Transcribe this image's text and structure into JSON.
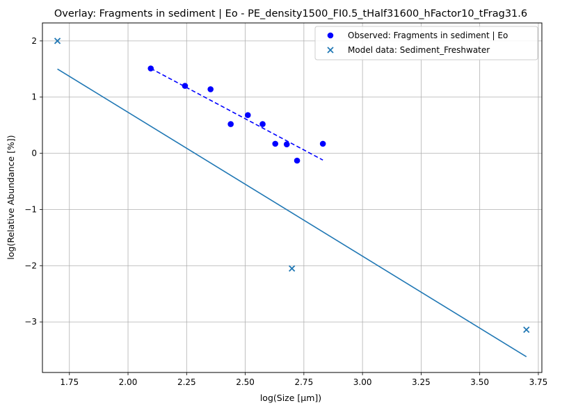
{
  "chart_data": {
    "type": "scatter",
    "title": "Overlay: Fragments in sediment | Eo - PE_density1500_FI0.5_tHalf31600_hFactor10_tFrag31.6",
    "xlabel": "log(Size [µm])",
    "ylabel": "log(Relative Abundance [%])",
    "xlim": [
      1.635,
      3.765
    ],
    "ylim": [
      -3.9,
      2.32
    ],
    "xticks": [
      1.75,
      2.0,
      2.25,
      2.5,
      2.75,
      3.0,
      3.25,
      3.5,
      3.75
    ],
    "xtick_labels": [
      "1.75",
      "2.00",
      "2.25",
      "2.50",
      "2.75",
      "3.00",
      "3.25",
      "3.50",
      "3.75"
    ],
    "yticks": [
      -3,
      -2,
      -1,
      0,
      1,
      2
    ],
    "ytick_labels": [
      "−3",
      "−2",
      "−1",
      "0",
      "1",
      "2"
    ],
    "grid": true,
    "legend_position": "top-right",
    "series": [
      {
        "name": "Observed: Fragments in sediment | Eo",
        "kind": "scatter",
        "marker": "circle",
        "color": "#0000ff",
        "x": [
          2.097,
          2.243,
          2.352,
          2.438,
          2.511,
          2.574,
          2.628,
          2.677,
          2.721,
          2.831
        ],
        "y": [
          1.51,
          1.2,
          1.14,
          0.52,
          0.68,
          0.52,
          0.17,
          0.16,
          -0.13,
          0.17
        ]
      },
      {
        "name": "Observed fit",
        "kind": "line",
        "style": "dashed",
        "color": "#0000ff",
        "x": [
          2.097,
          2.831
        ],
        "y": [
          1.51,
          -0.12
        ]
      },
      {
        "name": "Model data: Sediment_Freshwater",
        "kind": "scatter",
        "marker": "x",
        "color": "#1f77b4",
        "x": [
          1.699,
          2.699,
          3.699
        ],
        "y": [
          2.0,
          -2.05,
          -3.14
        ]
      },
      {
        "name": "Model fit",
        "kind": "line",
        "style": "solid",
        "color": "#1f77b4",
        "x": [
          1.699,
          3.699
        ],
        "y": [
          1.5,
          -3.62
        ]
      }
    ],
    "legend": [
      {
        "label": "Observed: Fragments in sediment | Eo",
        "marker": "circle",
        "color": "#0000ff"
      },
      {
        "label": "Model data: Sediment_Freshwater",
        "marker": "x",
        "color": "#1f77b4"
      }
    ]
  }
}
